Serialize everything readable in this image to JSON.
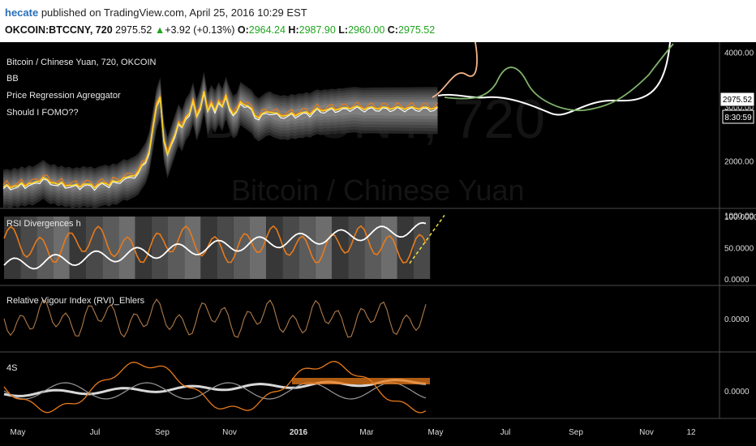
{
  "header": {
    "user": "hecate",
    "published_text": " published on TradingView.com, April 25, 2016 10:29 EST",
    "symbol": "OKCOIN:BTCCNY, 720",
    "last": "2975.52",
    "change_arrow": "▲",
    "change": "+3.92 (+0.13%)",
    "o_label": "O:",
    "o_value": "2964.24",
    "h_label": "H:",
    "h_value": "2987.90",
    "l_label": "L:",
    "l_value": "2960.00",
    "c_label": "C:",
    "c_value": "2975.52"
  },
  "watermark": {
    "symbol": "BTCCNY, 720",
    "name": "Bitcoin / Chinese Yuan"
  },
  "price_pane": {
    "legend": [
      "Bitcoin / Chinese Yuan, 720, OKCOIN",
      "BB",
      "Price Regression Agreggator",
      "Should I FOMO??"
    ],
    "last_price_label": "2975.52",
    "countdown_label": "8:30:59"
  },
  "rsi_pane": {
    "legend": "RSI Divergences h"
  },
  "rvi_pane": {
    "legend": "Relative Vigour Index (RVI)_Ehlers"
  },
  "fs_pane": {
    "legend": "4S"
  },
  "colors": {
    "background": "#000000",
    "price": "#ffd21e",
    "orange": "#e87a1a",
    "white": "#ffffff",
    "green": "#7fb26a",
    "rvi": "#b07a4a"
  },
  "chart_data": [
    {
      "type": "line",
      "pane": "price",
      "x_ticks": [
        "May",
        "Jul",
        "Sep",
        "Nov",
        "2016",
        "Mar",
        "May",
        "Jul",
        "Sep",
        "Nov",
        "12"
      ],
      "y_ticks": [
        "4000.00",
        "3000.00",
        "2000.00",
        "1000.00"
      ],
      "series": [
        {
          "x": [
            0,
            3,
            6,
            9,
            12,
            15,
            18,
            21,
            24,
            27,
            30,
            33,
            36,
            39,
            42,
            45,
            48,
            51,
            54,
            57,
            60,
            63,
            66,
            69,
            72,
            75,
            78,
            81,
            84,
            87,
            90,
            93,
            96,
            99,
            102,
            105,
            108,
            111,
            114,
            117,
            120,
            123,
            126,
            129,
            132,
            135,
            138,
            141,
            144,
            147,
            150,
            153,
            156,
            159,
            162,
            165,
            168,
            171,
            174,
            177,
            180,
            183,
            186,
            189,
            192,
            195,
            198,
            201,
            204,
            207,
            210,
            213,
            216,
            219,
            222,
            225,
            228,
            231,
            234,
            237,
            240,
            243,
            246,
            249,
            252,
            255,
            258,
            261,
            264,
            267,
            270,
            273,
            276,
            279,
            282,
            285,
            288,
            291,
            294,
            297,
            300,
            303,
            306,
            309,
            312,
            315,
            318,
            321,
            324,
            327,
            330,
            333,
            336,
            339,
            342,
            345,
            348,
            351,
            354,
            357
          ],
          "y": [
            1520,
            1540,
            1510,
            1560,
            1530,
            1580,
            1550,
            1600,
            1570,
            1610,
            1650,
            1700,
            1640,
            1600,
            1620,
            1560,
            1590,
            1550,
            1570,
            1530,
            1560,
            1540,
            1580,
            1550,
            1570,
            1530,
            1560,
            1580,
            1600,
            1570,
            1620,
            1600,
            1650,
            1700,
            1680,
            1720,
            1750,
            1800,
            1900,
            2000,
            2200,
            2600,
            3000,
            3200,
            2400,
            2100,
            2300,
            2500,
            2700,
            2600,
            2800,
            2900,
            3100,
            2800,
            3000,
            3300,
            2900,
            3050,
            2950,
            3100,
            2980,
            3200,
            3000,
            2850,
            2900,
            3100,
            3050,
            3000,
            2950,
            2850,
            2800,
            2850,
            2900,
            2920,
            2880,
            2860,
            2840,
            2850,
            2830,
            2870,
            2850,
            2880,
            2870,
            2900,
            2880,
            2920,
            2950,
            2930,
            2950,
            2940,
            2960,
            2950,
            2970,
            2960,
            2975,
            2980,
            2990,
            2985,
            2975,
            2970,
            2975,
            2975,
            2976,
            2975,
            2975,
            2975,
            2975,
            2975,
            2975,
            2975,
            2975,
            2975,
            2975,
            2975,
            2975,
            2975,
            2975,
            2975,
            2975,
            2975
          ]
        }
      ]
    },
    {
      "type": "line",
      "pane": "rsi",
      "y_ticks": [
        "100.0000",
        "50.0000",
        "0.0000"
      ],
      "y_range": [
        0,
        100
      ]
    },
    {
      "type": "line",
      "pane": "rvi",
      "y_ticks": [
        "0.0000"
      ]
    },
    {
      "type": "line",
      "pane": "4s",
      "y_ticks": [
        "0.0000"
      ]
    }
  ]
}
